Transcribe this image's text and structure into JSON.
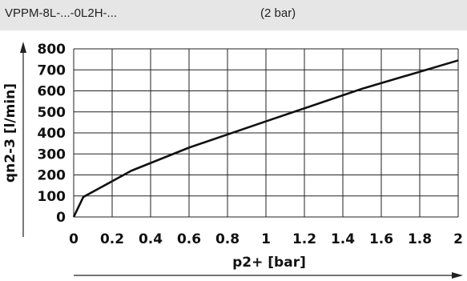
{
  "header": {
    "model": "VPPM-8L-...-0L2H-...",
    "pressure": "(2 bar)"
  },
  "chart_data": {
    "type": "line",
    "xlabel": "p2+ [bar]",
    "ylabel": "qn2-3 [l/min]",
    "xlim": [
      0,
      2
    ],
    "ylim": [
      0,
      800
    ],
    "x_ticks": [
      "0",
      "0.2",
      "0.4",
      "0.6",
      "0.8",
      "1",
      "1.2",
      "1.4",
      "1.6",
      "1.8",
      "2"
    ],
    "y_ticks": [
      "0",
      "100",
      "200",
      "300",
      "400",
      "500",
      "600",
      "700",
      "800"
    ],
    "grid": true,
    "series": [
      {
        "x": [
          0,
          0.05,
          0.3,
          0.6,
          1.0,
          1.5,
          2.0
        ],
        "y": [
          0,
          95,
          220,
          330,
          455,
          610,
          745
        ]
      }
    ],
    "color": "#111111"
  }
}
